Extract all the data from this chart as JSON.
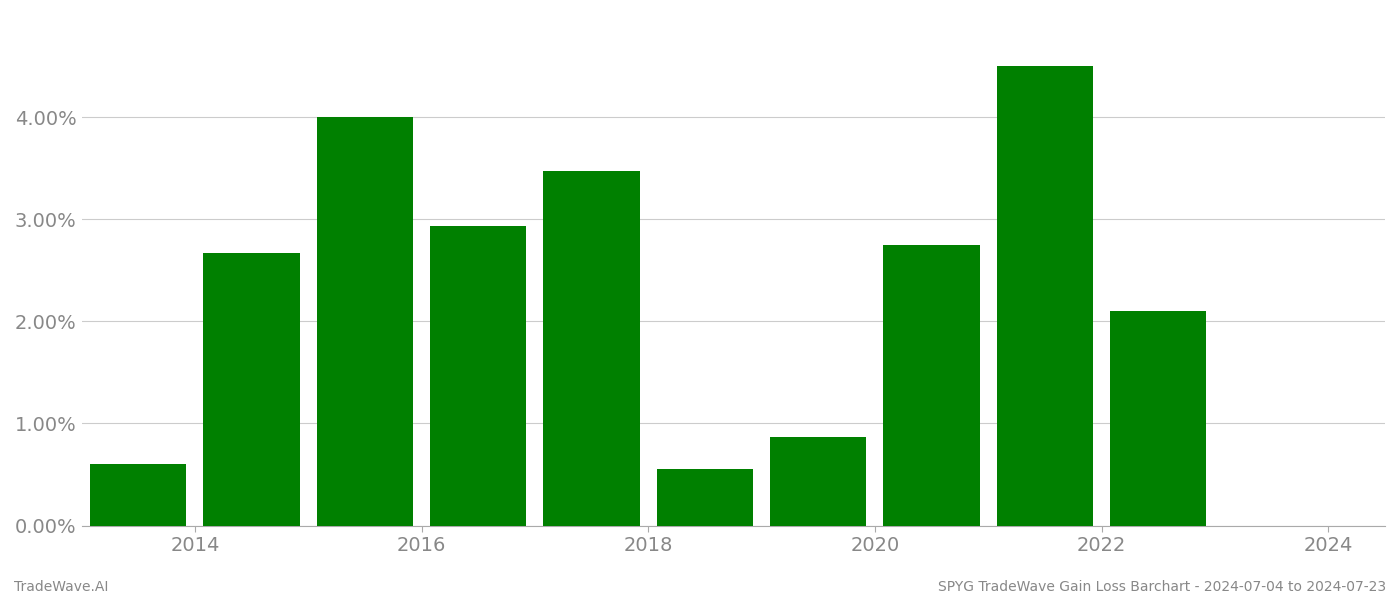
{
  "years": [
    2013.5,
    2014.5,
    2015.5,
    2016.5,
    2017.5,
    2018.5,
    2019.5,
    2020.5,
    2021.5,
    2022.5
  ],
  "values": [
    0.006,
    0.0267,
    0.04,
    0.0293,
    0.0347,
    0.0055,
    0.0087,
    0.0275,
    0.045,
    0.021
  ],
  "bar_color": "#008000",
  "title": "SPYG TradeWave Gain Loss Barchart - 2024-07-04 to 2024-07-23",
  "watermark_left": "TradeWave.AI",
  "ylim": [
    0,
    0.05
  ],
  "yticks": [
    0.0,
    0.01,
    0.02,
    0.03,
    0.04
  ],
  "xlim": [
    2013.0,
    2024.5
  ],
  "xticks": [
    2014,
    2016,
    2018,
    2020,
    2022,
    2024
  ],
  "background_color": "#ffffff",
  "grid_color": "#cccccc",
  "bar_width": 0.85,
  "tick_fontsize": 14,
  "label_color": "#888888",
  "spine_color": "#aaaaaa"
}
